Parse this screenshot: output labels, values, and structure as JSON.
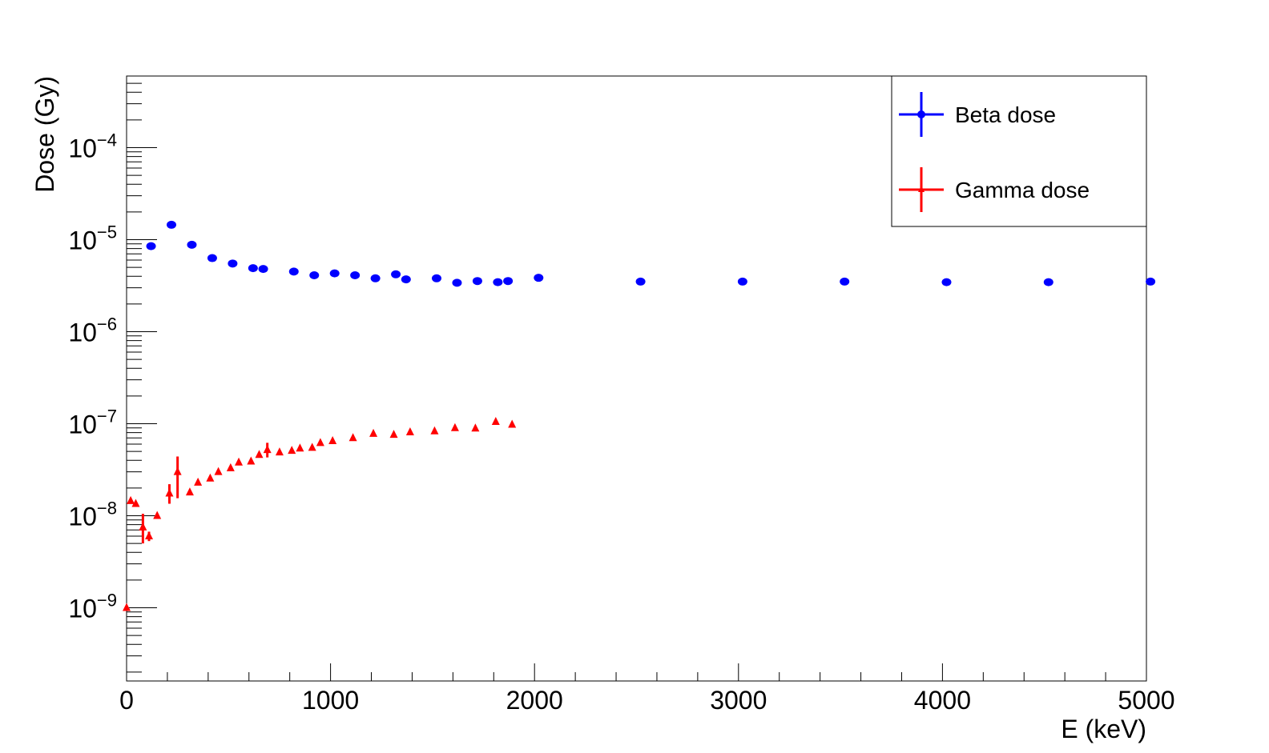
{
  "chart_data": {
    "type": "scatter",
    "title": "",
    "xlabel": "E (keV)",
    "ylabel": "Dose (Gy)",
    "xlim": [
      0,
      5000
    ],
    "ylim": [
      1.6e-10,
      0.0006
    ],
    "yscale": "log",
    "grid": false,
    "legend_position": "top-right",
    "x_tick_labels": [
      "0",
      "1000",
      "2000",
      "3000",
      "4000",
      "5000"
    ],
    "y_tick_labels": [
      {
        "base": "10",
        "exp": "−9"
      },
      {
        "base": "10",
        "exp": "−8"
      },
      {
        "base": "10",
        "exp": "−7"
      },
      {
        "base": "10",
        "exp": "−6"
      },
      {
        "base": "10",
        "exp": "−5"
      },
      {
        "base": "10",
        "exp": "−4"
      }
    ],
    "series": [
      {
        "name": "Beta dose",
        "color": "#0000ff",
        "marker": "circle",
        "points": [
          {
            "x": 120,
            "y": 8.5e-06
          },
          {
            "x": 220,
            "y": 1.45e-05
          },
          {
            "x": 320,
            "y": 8.8e-06
          },
          {
            "x": 420,
            "y": 6.3e-06
          },
          {
            "x": 520,
            "y": 5.5e-06
          },
          {
            "x": 620,
            "y": 4.9e-06
          },
          {
            "x": 670,
            "y": 4.8e-06
          },
          {
            "x": 820,
            "y": 4.5e-06
          },
          {
            "x": 920,
            "y": 4.1e-06
          },
          {
            "x": 1020,
            "y": 4.3e-06
          },
          {
            "x": 1120,
            "y": 4.1e-06
          },
          {
            "x": 1220,
            "y": 3.8e-06
          },
          {
            "x": 1320,
            "y": 4.2e-06
          },
          {
            "x": 1370,
            "y": 3.7e-06
          },
          {
            "x": 1520,
            "y": 3.8e-06
          },
          {
            "x": 1620,
            "y": 3.4e-06
          },
          {
            "x": 1720,
            "y": 3.55e-06
          },
          {
            "x": 1820,
            "y": 3.45e-06
          },
          {
            "x": 1870,
            "y": 3.55e-06
          },
          {
            "x": 2020,
            "y": 3.85e-06
          },
          {
            "x": 2520,
            "y": 3.5e-06
          },
          {
            "x": 3020,
            "y": 3.5e-06
          },
          {
            "x": 3520,
            "y": 3.5e-06
          },
          {
            "x": 4020,
            "y": 3.45e-06
          },
          {
            "x": 4520,
            "y": 3.45e-06
          },
          {
            "x": 5020,
            "y": 3.5e-06
          }
        ]
      },
      {
        "name": "Gamma dose",
        "color": "#ff0000",
        "marker": "triangle",
        "points": [
          {
            "x": 0,
            "y": 1e-09
          },
          {
            "x": 20,
            "y": 1.45e-08
          },
          {
            "x": 45,
            "y": 1.35e-08
          },
          {
            "x": 80,
            "y": 7.5e-09,
            "err_lo": 5e-09,
            "err_hi": 1.05e-08
          },
          {
            "x": 110,
            "y": 6e-09,
            "err_lo": 5.3e-09,
            "err_hi": 6.7e-09
          },
          {
            "x": 150,
            "y": 1e-08
          },
          {
            "x": 210,
            "y": 1.75e-08,
            "err_lo": 1.35e-08,
            "err_hi": 2.2e-08
          },
          {
            "x": 250,
            "y": 3e-08,
            "err_lo": 1.55e-08,
            "err_hi": 4.4e-08
          },
          {
            "x": 310,
            "y": 1.8e-08
          },
          {
            "x": 350,
            "y": 2.3e-08
          },
          {
            "x": 410,
            "y": 2.55e-08
          },
          {
            "x": 450,
            "y": 3e-08
          },
          {
            "x": 510,
            "y": 3.3e-08
          },
          {
            "x": 550,
            "y": 3.8e-08
          },
          {
            "x": 610,
            "y": 3.9e-08
          },
          {
            "x": 650,
            "y": 4.6e-08
          },
          {
            "x": 690,
            "y": 5.2e-08,
            "err_lo": 4.3e-08,
            "err_hi": 6.2e-08
          },
          {
            "x": 750,
            "y": 4.9e-08
          },
          {
            "x": 810,
            "y": 5.1e-08
          },
          {
            "x": 850,
            "y": 5.4e-08
          },
          {
            "x": 910,
            "y": 5.5e-08
          },
          {
            "x": 950,
            "y": 6.2e-08
          },
          {
            "x": 1010,
            "y": 6.5e-08
          },
          {
            "x": 1110,
            "y": 7e-08
          },
          {
            "x": 1210,
            "y": 7.8e-08
          },
          {
            "x": 1310,
            "y": 7.6e-08
          },
          {
            "x": 1390,
            "y": 8.1e-08
          },
          {
            "x": 1510,
            "y": 8.3e-08
          },
          {
            "x": 1610,
            "y": 9e-08
          },
          {
            "x": 1710,
            "y": 8.9e-08
          },
          {
            "x": 1810,
            "y": 1.05e-07
          },
          {
            "x": 1890,
            "y": 9.8e-08
          }
        ]
      }
    ]
  }
}
